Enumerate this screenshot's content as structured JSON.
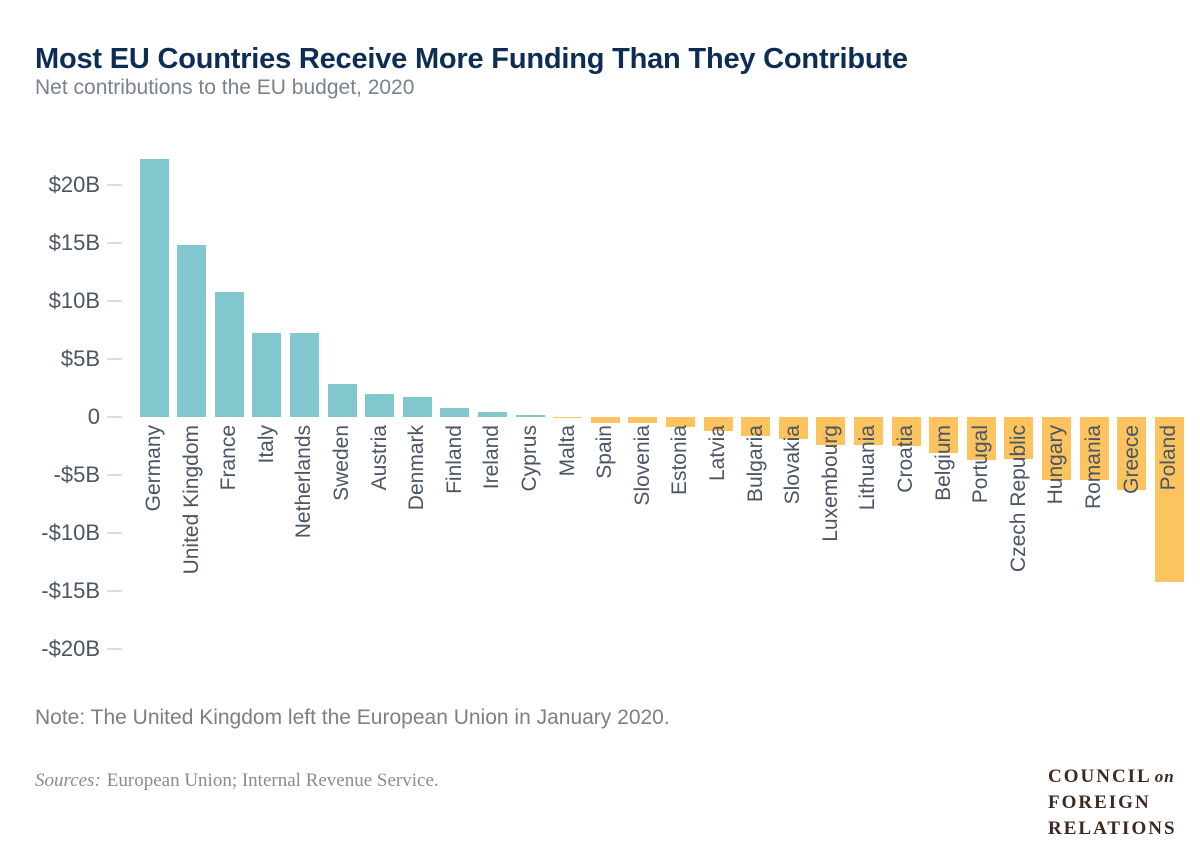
{
  "header": {
    "title": "Most EU Countries Receive More Funding Than They Contribute",
    "subtitle": "Net contributions to the EU budget, 2020"
  },
  "chart_data": {
    "type": "bar",
    "title": "Most EU Countries Receive More Funding Than They Contribute",
    "subtitle": "Net contributions to the EU budget, 2020",
    "unit": "billions of U.S. dollars",
    "categories": [
      "Germany",
      "United Kingdom",
      "France",
      "Italy",
      "Netherlands",
      "Sweden",
      "Austria",
      "Denmark",
      "Finland",
      "Ireland",
      "Cyprus",
      "Malta",
      "Spain",
      "Slovenia",
      "Estonia",
      "Latvia",
      "Bulgaria",
      "Slovakia",
      "Luxembourg",
      "Lithuania",
      "Croatia",
      "Belgium",
      "Portugal",
      "Czech Republic",
      "Hungary",
      "Romania",
      "Greece",
      "Poland"
    ],
    "values": [
      22.2,
      14.8,
      10.8,
      7.2,
      7.2,
      2.8,
      2.0,
      1.7,
      0.8,
      0.4,
      0.2,
      -0.1,
      -0.5,
      -0.5,
      -0.9,
      -1.2,
      -1.6,
      -1.9,
      -2.4,
      -2.4,
      -2.5,
      -3.1,
      -3.7,
      -3.6,
      -5.4,
      -5.4,
      -6.3,
      -14.2
    ],
    "y_ticks": [
      {
        "value": 20,
        "label": "$20B"
      },
      {
        "value": 15,
        "label": "$15B"
      },
      {
        "value": 10,
        "label": "$10B"
      },
      {
        "value": 5,
        "label": "$5B"
      },
      {
        "value": 0,
        "label": "0"
      },
      {
        "value": -5,
        "label": "-$5B"
      },
      {
        "value": -10,
        "label": "-$10B"
      },
      {
        "value": -15,
        "label": "-$15B"
      },
      {
        "value": -20,
        "label": "-$20B"
      }
    ],
    "ylim": [
      -20,
      22.5
    ],
    "grid": false,
    "legend": false,
    "positive_color": "#82C7CD",
    "negative_color": "#FCC35F",
    "axis_text_color": "#4A5664"
  },
  "footer": {
    "note": "Note: The United Kingdom left the European Union in January 2020.",
    "sources_label": "Sources:",
    "sources_text": "European Union; Internal Revenue Service."
  },
  "logo": {
    "line1": "COUNCIL",
    "line1_italic": "on",
    "line2": "FOREIGN",
    "line3": "RELATIONS",
    "color": "#3E291E"
  }
}
